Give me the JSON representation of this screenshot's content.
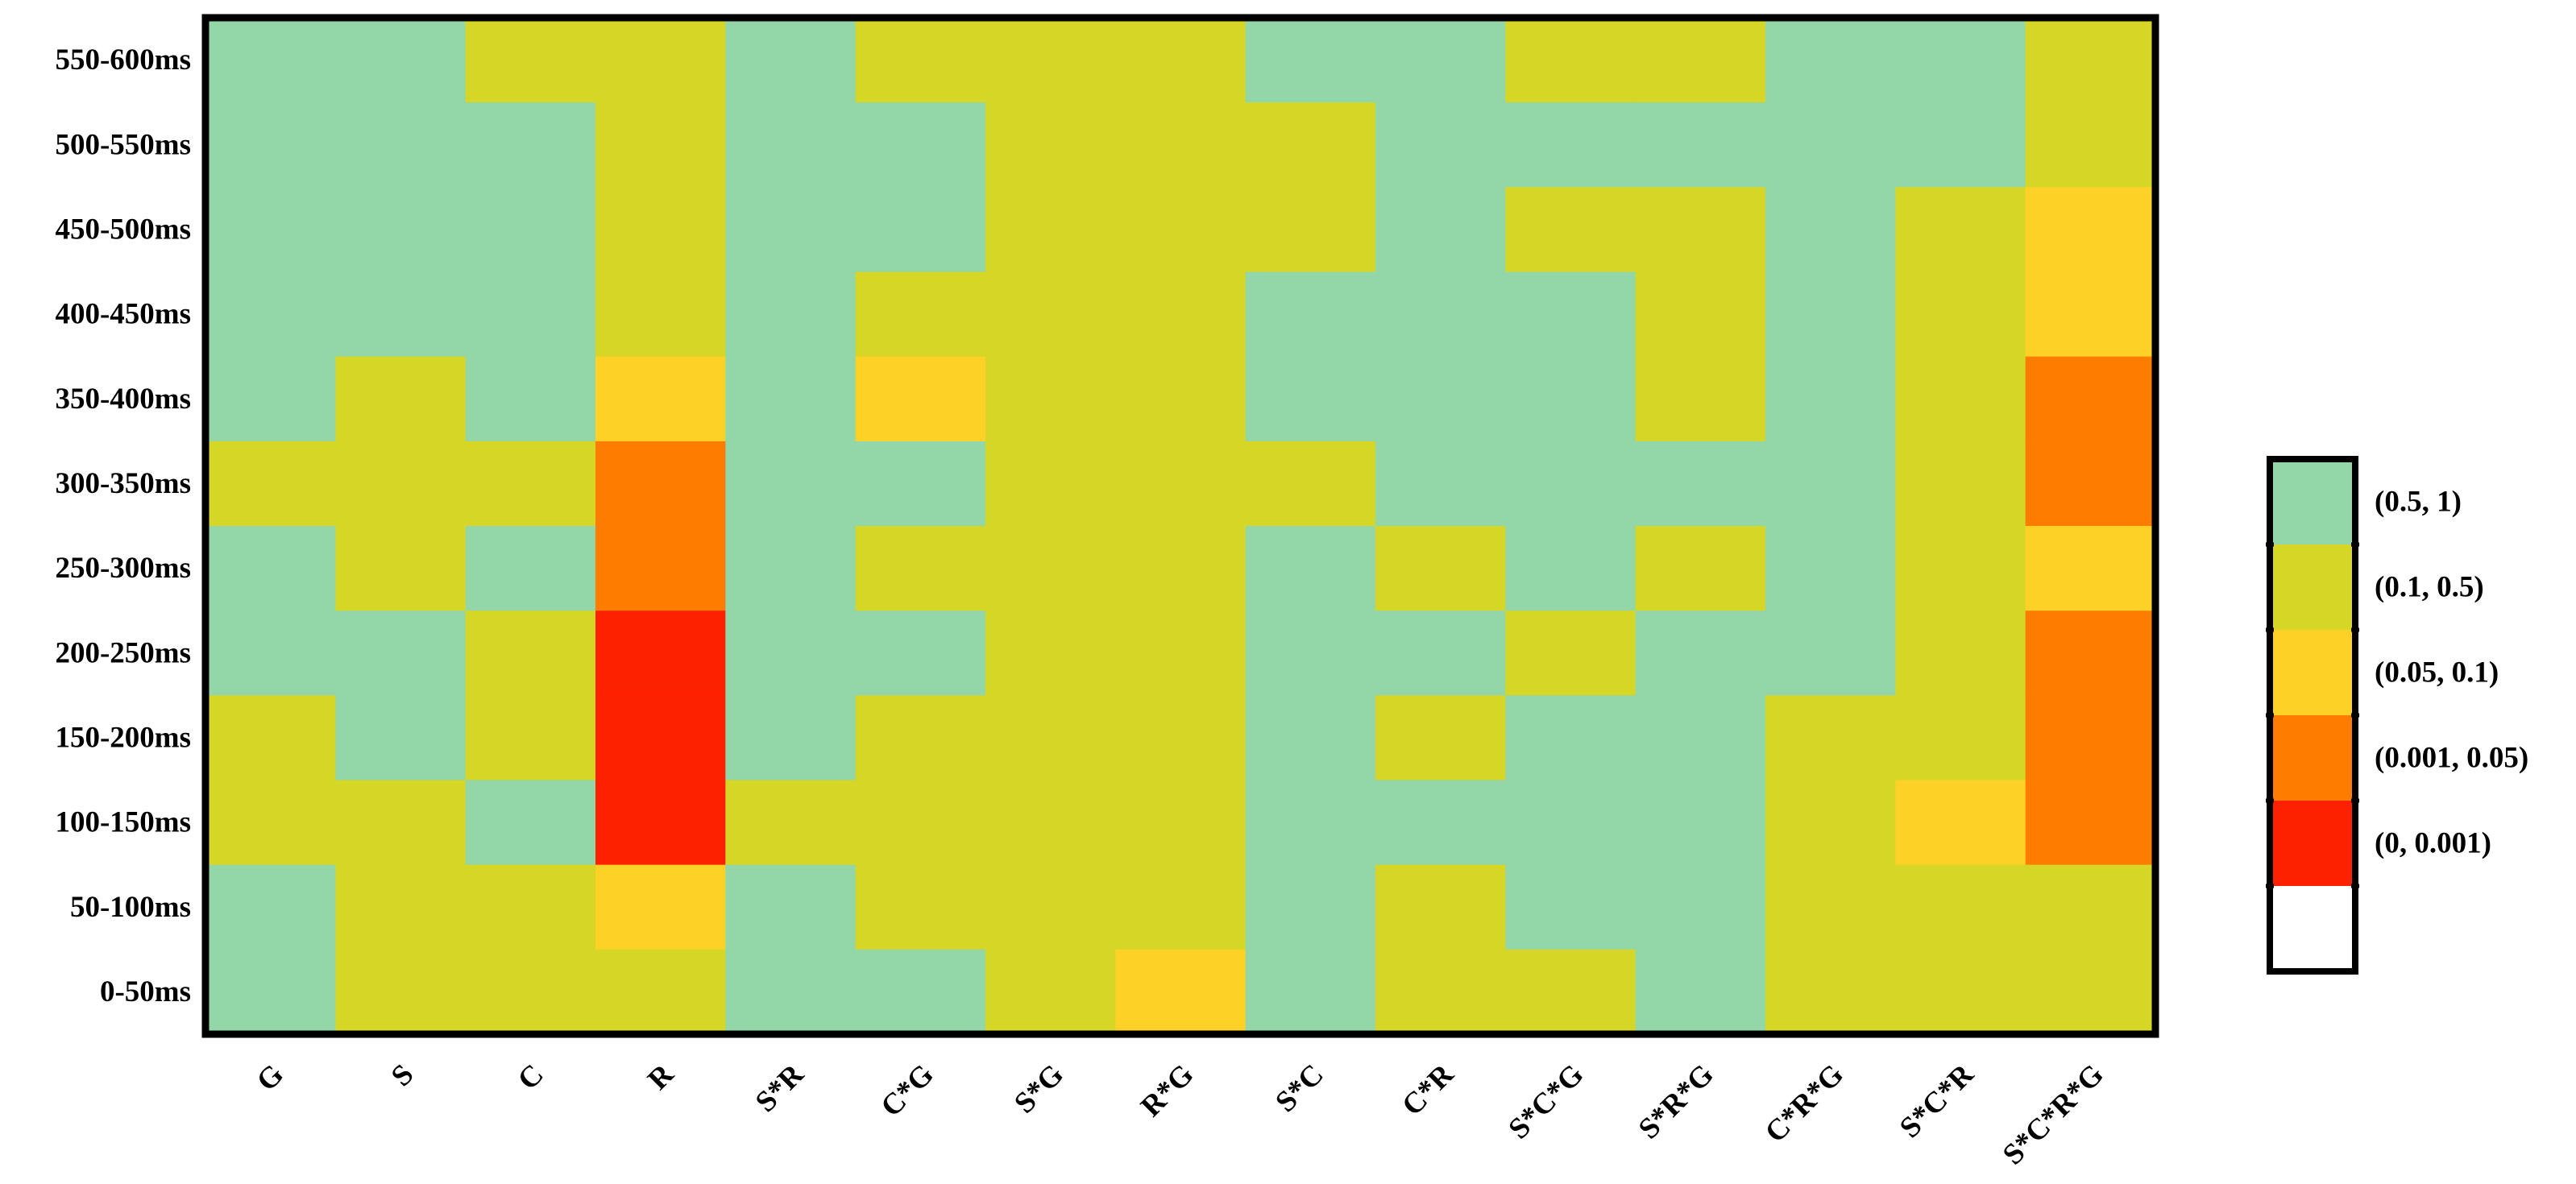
{
  "chart_data": {
    "type": "heatmap",
    "title": "",
    "xlabel": "",
    "ylabel": "",
    "categories_x": [
      "G",
      "S",
      "C",
      "R",
      "S*R",
      "C*G",
      "S*G",
      "R*G",
      "S*C",
      "C*R",
      "S*C*G",
      "S*R*G",
      "C*R*G",
      "S*C*R",
      "S*C*R*G"
    ],
    "categories_y": [
      "550-600ms",
      "500-550ms",
      "450-500ms",
      "400-450ms",
      "350-400ms",
      "300-350ms",
      "250-300ms",
      "200-250ms",
      "150-200ms",
      "100-150ms",
      "50-100ms",
      "0-50ms"
    ],
    "levels": [
      {
        "label": "(0.5, 1)",
        "color": "#93d6a8"
      },
      {
        "label": "(0.1, 0.5)",
        "color": "#d6d627"
      },
      {
        "label": "(0.05, 0.1)",
        "color": "#fed127"
      },
      {
        "label": "(0.001, 0.05)",
        "color": "#fe7d00"
      },
      {
        "label": "(0, 0.001)",
        "color": "#fe2100"
      },
      {
        "label": "",
        "color": "#ffffff"
      }
    ],
    "cells": [
      [
        0,
        0,
        1,
        1,
        0,
        1,
        1,
        1,
        0,
        0,
        1,
        1,
        0,
        0,
        1
      ],
      [
        0,
        0,
        0,
        1,
        0,
        0,
        1,
        1,
        1,
        0,
        0,
        0,
        0,
        0,
        1
      ],
      [
        0,
        0,
        0,
        1,
        0,
        0,
        1,
        1,
        1,
        0,
        1,
        1,
        0,
        1,
        2
      ],
      [
        0,
        0,
        0,
        1,
        0,
        1,
        1,
        1,
        0,
        0,
        0,
        1,
        0,
        1,
        2
      ],
      [
        0,
        1,
        0,
        2,
        0,
        2,
        1,
        1,
        0,
        0,
        0,
        1,
        0,
        1,
        3
      ],
      [
        1,
        1,
        1,
        3,
        0,
        0,
        1,
        1,
        1,
        0,
        0,
        0,
        0,
        1,
        3
      ],
      [
        0,
        1,
        0,
        3,
        0,
        1,
        1,
        1,
        0,
        1,
        0,
        1,
        0,
        1,
        2
      ],
      [
        0,
        0,
        1,
        4,
        0,
        0,
        1,
        1,
        0,
        0,
        1,
        0,
        0,
        1,
        3
      ],
      [
        1,
        0,
        1,
        4,
        0,
        1,
        1,
        1,
        0,
        1,
        0,
        0,
        1,
        1,
        3
      ],
      [
        1,
        1,
        0,
        4,
        1,
        1,
        1,
        1,
        0,
        0,
        0,
        0,
        1,
        2,
        3
      ],
      [
        0,
        1,
        1,
        2,
        0,
        1,
        1,
        1,
        0,
        1,
        0,
        0,
        1,
        1,
        1
      ],
      [
        0,
        1,
        1,
        1,
        0,
        0,
        1,
        2,
        0,
        1,
        1,
        0,
        1,
        1,
        1
      ]
    ],
    "legend_position": "right"
  }
}
